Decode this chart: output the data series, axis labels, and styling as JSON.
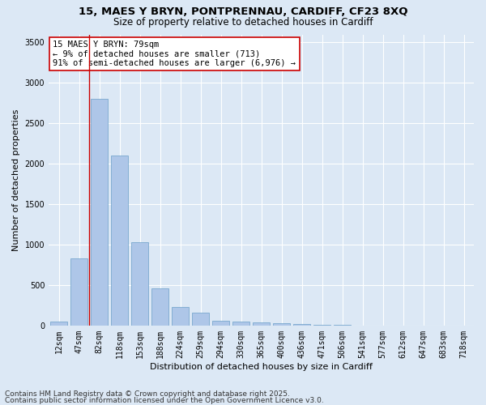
{
  "title1": "15, MAES Y BRYN, PONTPRENNAU, CARDIFF, CF23 8XQ",
  "title2": "Size of property relative to detached houses in Cardiff",
  "xlabel": "Distribution of detached houses by size in Cardiff",
  "ylabel": "Number of detached properties",
  "categories": [
    "12sqm",
    "47sqm",
    "82sqm",
    "118sqm",
    "153sqm",
    "188sqm",
    "224sqm",
    "259sqm",
    "294sqm",
    "330sqm",
    "365sqm",
    "400sqm",
    "436sqm",
    "471sqm",
    "506sqm",
    "541sqm",
    "577sqm",
    "612sqm",
    "647sqm",
    "683sqm",
    "718sqm"
  ],
  "values": [
    50,
    830,
    2800,
    2100,
    1030,
    460,
    230,
    155,
    60,
    45,
    35,
    25,
    15,
    8,
    5,
    3,
    2,
    1,
    1,
    0,
    0
  ],
  "bar_color": "#aec6e8",
  "bar_edge_color": "#6a9fc8",
  "vline_x": 1.5,
  "vline_color": "#cc0000",
  "annotation_text": "15 MAES Y BRYN: 79sqm\n← 9% of detached houses are smaller (713)\n91% of semi-detached houses are larger (6,976) →",
  "annotation_box_color": "#ffffff",
  "annotation_box_edge": "#cc0000",
  "ylim": [
    0,
    3600
  ],
  "yticks": [
    0,
    500,
    1000,
    1500,
    2000,
    2500,
    3000,
    3500
  ],
  "footer1": "Contains HM Land Registry data © Crown copyright and database right 2025.",
  "footer2": "Contains public sector information licensed under the Open Government Licence v3.0.",
  "background_color": "#dce8f5",
  "plot_bg_color": "#dce8f5",
  "title_fontsize": 9.5,
  "subtitle_fontsize": 8.5,
  "axis_label_fontsize": 8,
  "tick_fontsize": 7,
  "annotation_fontsize": 7.5,
  "footer_fontsize": 6.5
}
